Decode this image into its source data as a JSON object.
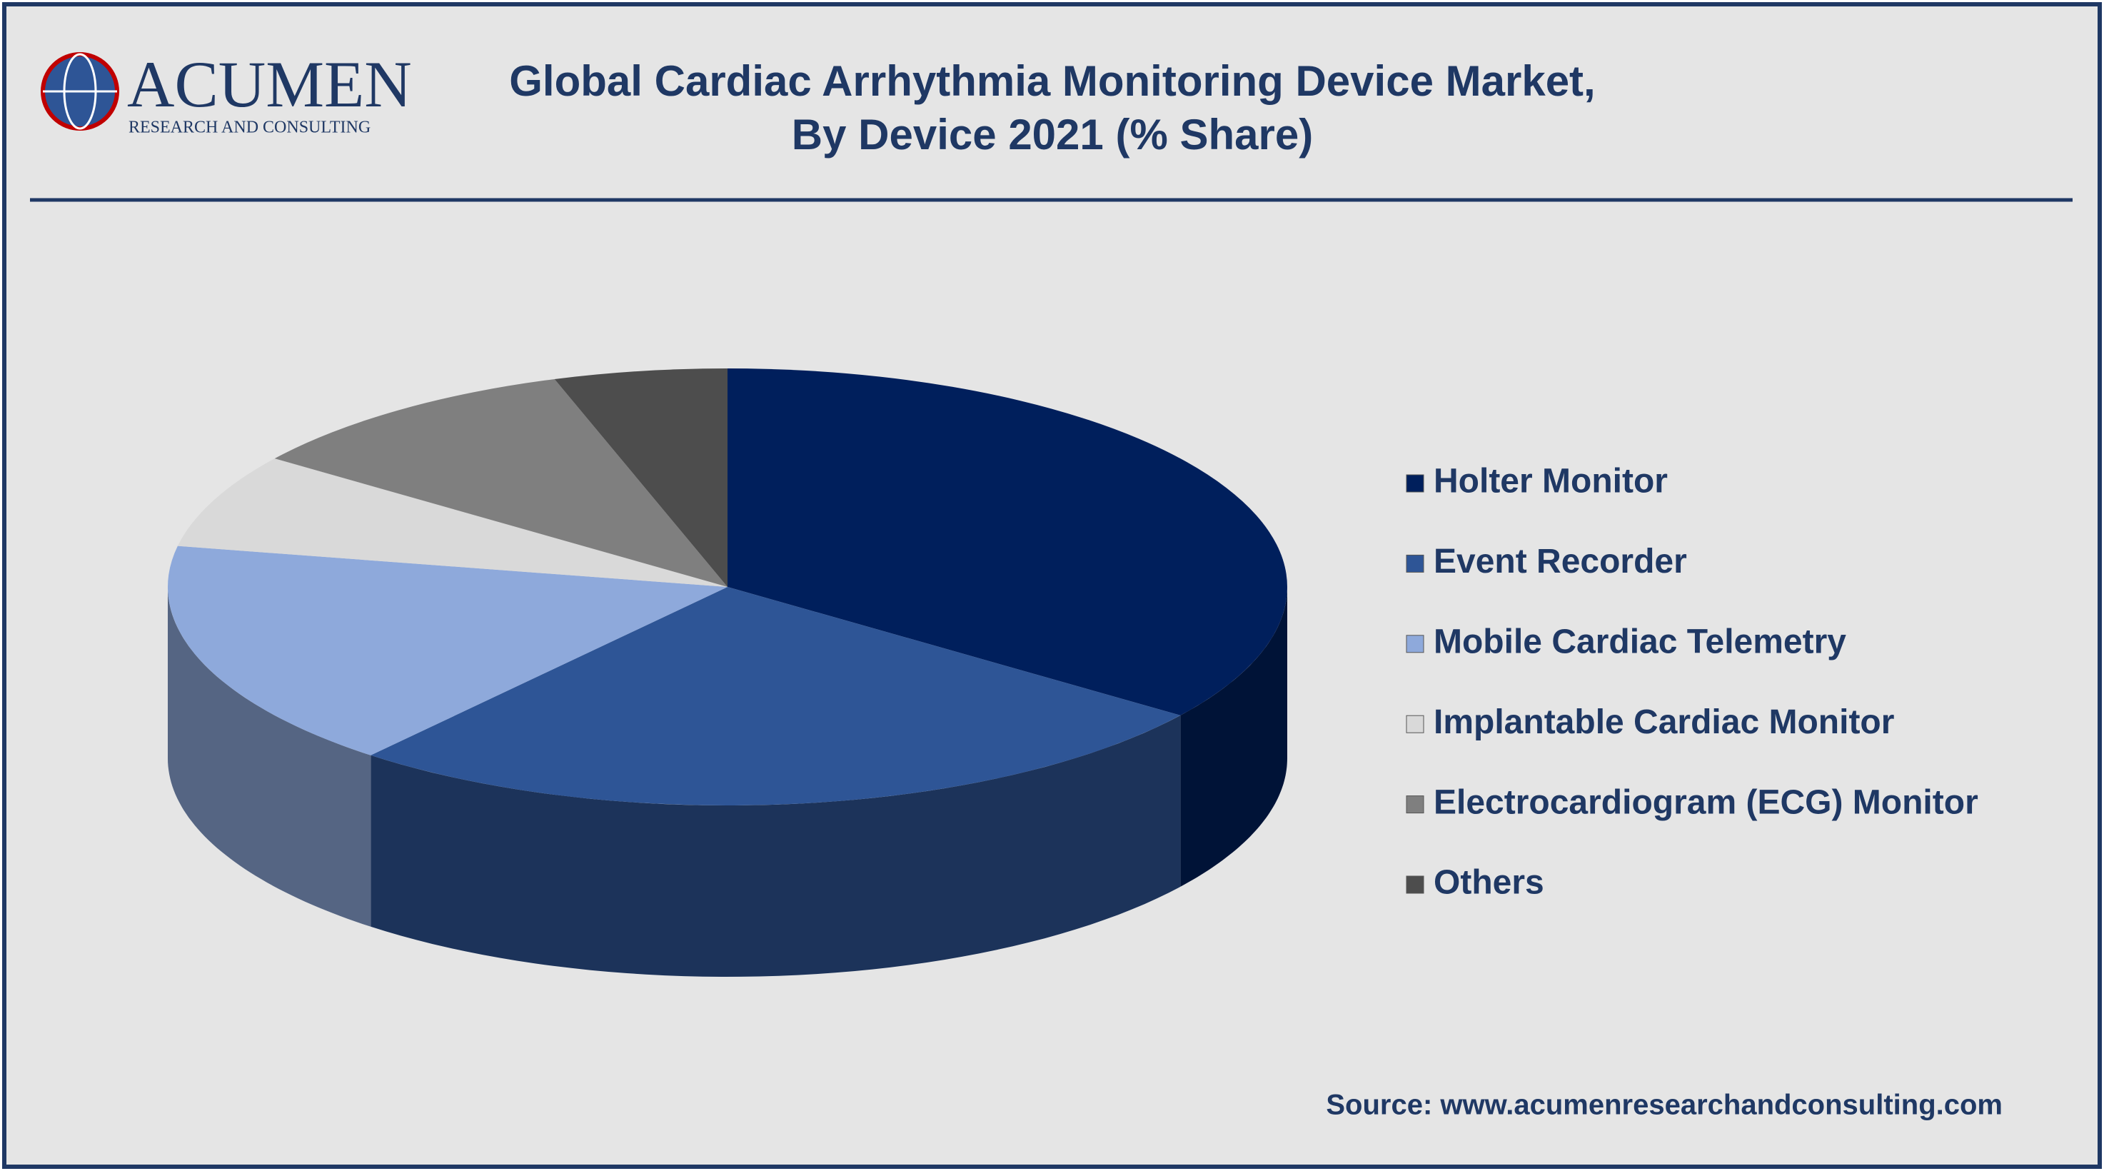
{
  "logo": {
    "name": "ACUMEN",
    "tagline": "RESEARCH AND CONSULTING"
  },
  "chart_data": {
    "type": "pie",
    "title": [
      "Global Cardiac Arrhythmia Monitoring Device Market,",
      "By Device 2021 (% Share)"
    ],
    "categories": [
      "Holter Monitor",
      "Event Recorder",
      "Mobile Cardiac Telemetry",
      "Implantable Cardiac Monitor",
      "Electrocardiogram (ECG) Monitor",
      "Others"
    ],
    "values": [
      35,
      26,
      17,
      7,
      10,
      5
    ],
    "colors": [
      "#001f5c",
      "#2e5596",
      "#8ea9db",
      "#d9d9d9",
      "#7f7f7f",
      "#4d4d4d"
    ],
    "legend": "right"
  },
  "source": "Source: www.acumenresearchandconsulting.com"
}
